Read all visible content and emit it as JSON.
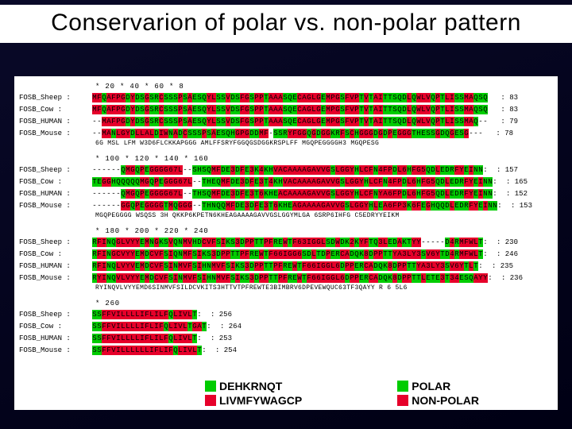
{
  "title": "Conservarion of polar vs. non-polar pattern",
  "colors": {
    "polar": "#00cc00",
    "nonpolar": "#e6002a",
    "gap": "#ffffff",
    "bg": "#ffffff",
    "text": "#000000",
    "slide_bg": "#000014"
  },
  "ruler_marks": [
    [
      "*",
      "20",
      "*",
      "40",
      "*",
      "60",
      "*",
      "8"
    ],
    [
      "*",
      "100",
      "*",
      "120",
      "*",
      "140",
      "*",
      "160"
    ],
    [
      "*",
      "180",
      "*",
      "200",
      "*",
      "220",
      "*",
      "240"
    ],
    [
      "*",
      "260"
    ]
  ],
  "species": [
    "FOSB_Sheep",
    "FOSB_Cow",
    "FOSB_HUMAN",
    "FOSB_Mouse"
  ],
  "blocks": [
    {
      "end": [
        83,
        83,
        79,
        78
      ],
      "seq": [
        "MFQAFPGDYDSGSRCSSSPSAESQYLSSVDSFGSPPTAAASQECAGLGEMPGSFVPTVTAITTSQDLQWLVQPTLISSMAQSQ",
        "MFQAFPGDYDSGSRCSSSPSAESQYLSSVDSFGSPPTAAASQECAGLGEMPGSFVPTVTAITTSQDLQWLVQPTLISSMAQSQ",
        "--MAFPGDYDSGSRCSSSPSAESQYLSSVDSFGSPPTAAASQECAGLGEMPGSFVPTVTAITTSQDLQWLVQPTLISSMAQ--",
        "--MANLGYDLLALDIWNADCSSSPSAESQHGPGDDMF-SSRYFGGQGDGGKRFSCHGGGDGDPEGGGTHESSGDQGESG---"
      ],
      "cons": "6G MSL LFM  W3D6FLCKKAPGGG AMLFFSRYFGGQGSDGGKRSPLFF  MGQPEGGGGH3 MGQPESG"
    },
    {
      "end": [
        157,
        165,
        152,
        153
      ],
      "seq": [
        "------QMGQPEGGGG67L--SHSQMFDE3DFE3K4KHVACAAAAGAVVGSLGGYHLCFN4FPDL6HFG5QDLEDRFYEINN:",
        "TEGGHQQQQQMGQPEGGG67L--THEQMFDE3DFE3T4KHVACAAAAGAVVGSLGGYHLCFN4FPDL6HFG5QDLEDRFYEINN:",
        "------QMGQPEGGGG67L--THSQMFDE3DFE3T6KHEACAAAAGAVVGSLGGYHLCFNYA6FPDL6HFG5QDLEDRFYEINN:",
        "------GGQPEGGGGTMQGGG--THNQQMFDE3DFE3T6KHEAGAAAAGAVVGSLGGYHLEA6FP3K6FEGHQQDLEDRFYEINN:"
      ],
      "cons": "MGQPEGGGG WSQSS 3H QKKP6KPETN6KHEAGAAAAGAVVGSLGGYMLGA 6SRP6IHFG C5EDRYYEIKM"
    },
    {
      "end": [
        230,
        246,
        235,
        236
      ],
      "seq": [
        "RFINQGLVYYEMNGKSVQNMVHDCVFSIKS3DPPTTPFREWTF63IGGLSDWDK2KYFTQ3LEDAKTYY-----D4RMFWLT:",
        "RFINGCVYYEMDCVFSIQNMFSIKS3DPPTTPFREWTF66IGG6SDLTDPERCADQK8DPPTTYA3LY3SV6YTD4RMFWLT:",
        "RFINQLVYVEMDCVFSINMVFSIHNMVFSIKS3DPPTTPFREWTF66IGGL6DPPERCADQK8DPPTTYA3LY3SV6YTLT:",
        "RYINQVLVYYEMDCVFSINMVFSIHNMVFSIKS3DPPTTPFREWTF66IGGL6DPPERCADQK8DPPTTLETE3T34ESQAYY:"
      ],
      "cons": "RYINQVLVYYEMD6SINMVFSILDCVKITS3HTTVTPFREWTE3BIMBRV6DPEVEWQUC63TF3QAYY   R 6 5L6"
    },
    {
      "end": [
        256,
        264,
        253,
        254
      ],
      "seq": [
        "SSFFVILLLLIFLILFQLIVLT:",
        "SSFFVILLLLIFLIFQLIVLTGAT:",
        "SSFFVILLLLIFLILFQLIVLT:",
        "SSFFVILLLLLLIFLIFQLIVLT:"
      ],
      "cons": ""
    }
  ],
  "polar_set": "DEHKRNQTST",
  "legend": {
    "polar_code": "DEHKRNQT",
    "nonpolar_code": "LIVMFYWAGCP",
    "polar_label": "POLAR",
    "nonpolar_label": "NON-POLAR"
  },
  "typography": {
    "title_fontsize": 30,
    "mono_fontsize": 9,
    "legend_fontsize": 14
  }
}
